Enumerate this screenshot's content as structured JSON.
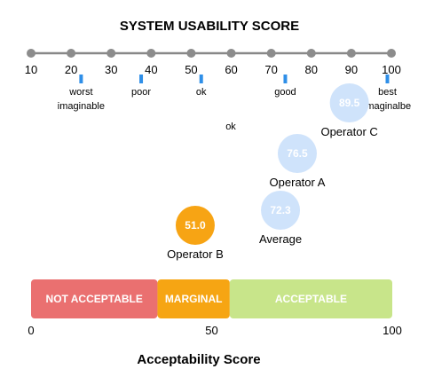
{
  "chart_data": {
    "type": "scatter",
    "title": "SYSTEM USABILITY SCORE",
    "axis": {
      "min": 10,
      "max": 100,
      "ticks": [
        10,
        20,
        30,
        40,
        50,
        60,
        70,
        80,
        90,
        100
      ]
    },
    "adjectives": [
      {
        "value": 22.5,
        "lines": [
          "worst",
          "imaginable"
        ]
      },
      {
        "value": 37.5,
        "lines": [
          "poor"
        ]
      },
      {
        "value": 52.5,
        "lines": [
          "ok"
        ]
      },
      {
        "value": 73.5,
        "lines": [
          "good"
        ]
      },
      {
        "value": 99,
        "lines": [
          "best",
          "imaginalbe"
        ]
      }
    ],
    "stray_label": "ok",
    "operators": [
      {
        "name": "Operator C",
        "value": 89.5,
        "label": "89.5",
        "color": "#cfe3fb"
      },
      {
        "name": "Operator A",
        "value": 76.5,
        "label": "76.5",
        "color": "#cfe3fb"
      },
      {
        "name": "Average",
        "value": 72.3,
        "label": "72.3",
        "color": "#cfe3fb"
      },
      {
        "name": "Operator B",
        "value": 51.0,
        "label": "51.0",
        "color": "#f7a414"
      }
    ],
    "acceptability": {
      "range": [
        0,
        100
      ],
      "ticks": [
        0,
        50,
        100
      ],
      "bands": [
        {
          "label": "NOT ACCEPTABLE",
          "from": 0,
          "to": 35,
          "color": "#ea7070"
        },
        {
          "label": "MARGINAL",
          "from": 35,
          "to": 55,
          "color": "#f6a513"
        },
        {
          "label": "ACCEPTABLE",
          "from": 55,
          "to": 100,
          "color": "#c8e58a"
        }
      ],
      "title": "Acceptability Score"
    },
    "colors": {
      "axis_line": "#888888",
      "axis_dot": "#8c8c8c",
      "adjective_marker": "#2f8fe8"
    }
  }
}
